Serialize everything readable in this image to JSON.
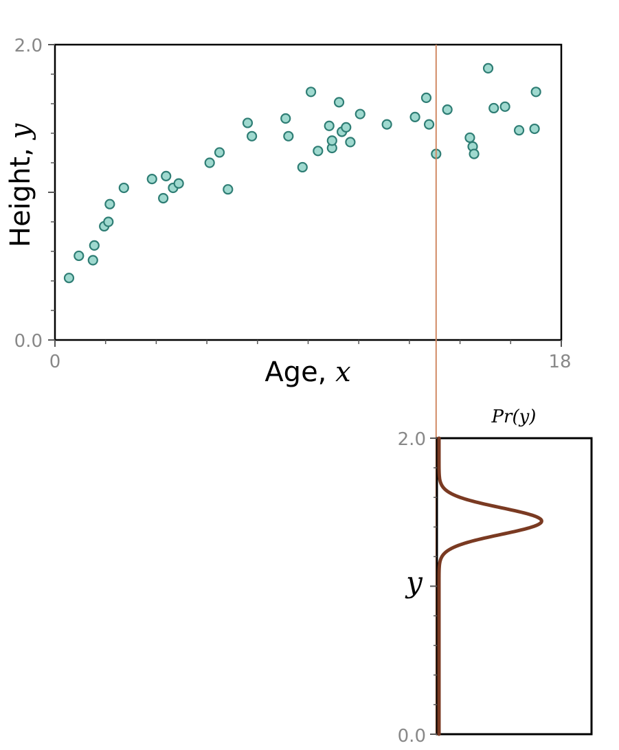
{
  "chart_data": [
    {
      "type": "scatter",
      "title": "",
      "xlabel": "Age, ",
      "xlabel_var": "x",
      "ylabel": "Height, ",
      "ylabel_var": "y",
      "xlim": [
        0,
        18
      ],
      "ylim": [
        0.0,
        2.0
      ],
      "x_tick_labels": [
        "0",
        "18"
      ],
      "y_tick_labels": [
        "0.0",
        "2.0"
      ],
      "marker_fill": "#9fd9cf",
      "marker_edge": "#2e7d74",
      "points": [
        [
          0.5,
          0.42
        ],
        [
          0.85,
          0.57
        ],
        [
          1.35,
          0.54
        ],
        [
          1.4,
          0.64
        ],
        [
          1.75,
          0.77
        ],
        [
          1.9,
          0.8
        ],
        [
          1.95,
          0.92
        ],
        [
          2.45,
          1.03
        ],
        [
          3.45,
          1.09
        ],
        [
          3.85,
          0.96
        ],
        [
          3.95,
          1.11
        ],
        [
          4.2,
          1.03
        ],
        [
          4.4,
          1.06
        ],
        [
          5.5,
          1.2
        ],
        [
          5.85,
          1.27
        ],
        [
          6.15,
          1.02
        ],
        [
          6.85,
          1.47
        ],
        [
          7.0,
          1.38
        ],
        [
          8.2,
          1.5
        ],
        [
          8.3,
          1.38
        ],
        [
          8.8,
          1.17
        ],
        [
          9.1,
          1.68
        ],
        [
          9.35,
          1.28
        ],
        [
          9.75,
          1.45
        ],
        [
          9.85,
          1.3
        ],
        [
          9.85,
          1.35
        ],
        [
          10.1,
          1.61
        ],
        [
          10.2,
          1.41
        ],
        [
          10.35,
          1.44
        ],
        [
          10.5,
          1.34
        ],
        [
          10.85,
          1.53
        ],
        [
          11.8,
          1.46
        ],
        [
          12.8,
          1.51
        ],
        [
          13.2,
          1.64
        ],
        [
          13.3,
          1.46
        ],
        [
          13.55,
          1.26
        ],
        [
          13.95,
          1.56
        ],
        [
          14.75,
          1.37
        ],
        [
          14.85,
          1.31
        ],
        [
          14.9,
          1.26
        ],
        [
          15.4,
          1.84
        ],
        [
          15.6,
          1.57
        ],
        [
          16.0,
          1.58
        ],
        [
          16.5,
          1.42
        ],
        [
          17.05,
          1.43
        ],
        [
          17.1,
          1.68
        ]
      ],
      "vertical_line_x": 13.55,
      "vertical_line_color": "#d08a64"
    },
    {
      "type": "line",
      "title": "Pr(y)",
      "ylabel_var": "y",
      "ylim": [
        0.0,
        2.0
      ],
      "y_tick_labels": [
        "0.0",
        "2.0"
      ],
      "line_color": "#7a3a22",
      "distribution": "normal",
      "mean": 1.44,
      "std": 0.09,
      "peak_fraction": 0.67
    }
  ]
}
